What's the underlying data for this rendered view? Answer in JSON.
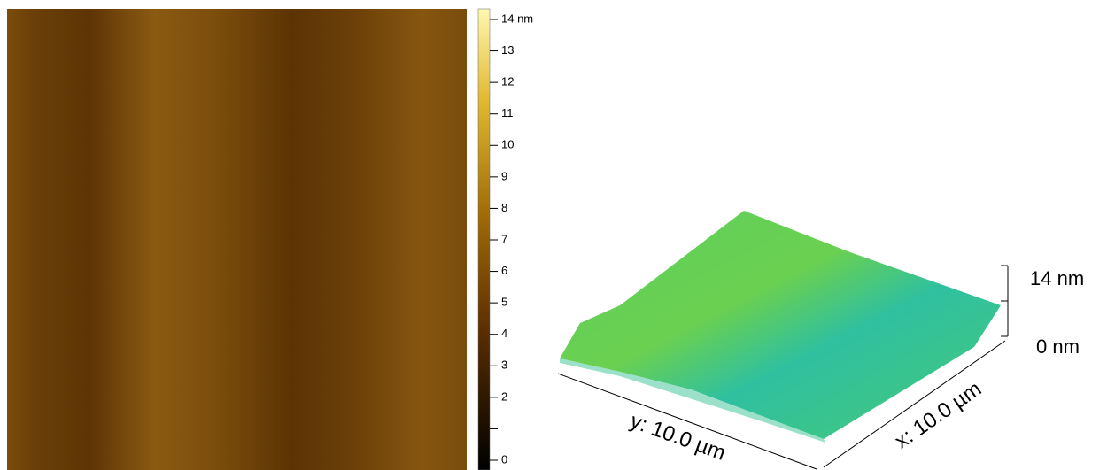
{
  "colorbar": {
    "range": [
      0,
      14
    ],
    "ticks": [
      0,
      {
        "value": 1,
        "label": null
      },
      2,
      3,
      4,
      5,
      6,
      7,
      8,
      9,
      10,
      11,
      12,
      13,
      {
        "value": 14,
        "label": "14 nm"
      }
    ]
  },
  "surface": {
    "z_labels": [
      "14 nm",
      "0 nm"
    ],
    "x_axis_label": "x: 10.0 µm",
    "y_axis_label": "y: 10.0 µm"
  }
}
